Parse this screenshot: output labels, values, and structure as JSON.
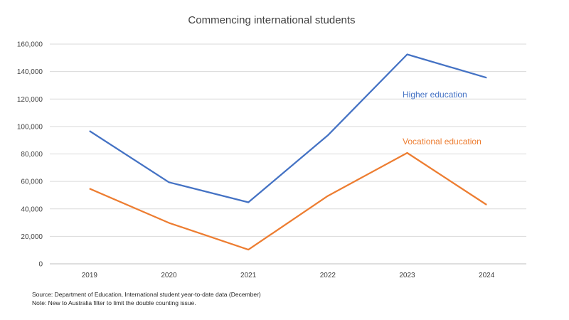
{
  "chart_data": {
    "type": "line",
    "title": "Commencing international students",
    "categories": [
      "2019",
      "2020",
      "2021",
      "2022",
      "2023",
      "2024"
    ],
    "series": [
      {
        "name": "Higher education",
        "color": "#4472C4",
        "values": [
          96800,
          59400,
          44800,
          93500,
          152500,
          135500
        ]
      },
      {
        "name": "Vocational education",
        "color": "#ED7D31",
        "values": [
          54800,
          29800,
          10300,
          49400,
          80800,
          43000
        ]
      }
    ],
    "ylim": [
      0,
      160000
    ],
    "yticks": [
      0,
      20000,
      40000,
      60000,
      80000,
      100000,
      120000,
      140000,
      160000
    ],
    "ytick_labels": [
      "0",
      "20,000",
      "40,000",
      "60,000",
      "80,000",
      "100,000",
      "120,000",
      "140,000",
      "160,000"
    ],
    "xlabel": "",
    "ylabel": "",
    "grid": true,
    "legend": "inline labels"
  },
  "notes": {
    "source": "Source: Department of Education, International student year-to-date data (December)",
    "note": "Note: New to Australia filter to limit the double counting issue."
  }
}
